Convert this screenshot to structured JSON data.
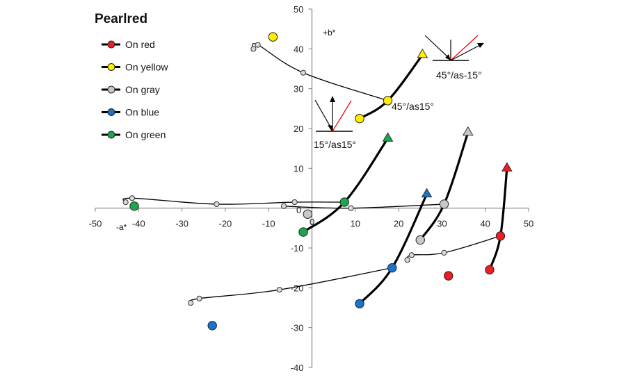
{
  "chart_data": {
    "type": "scatter",
    "title": "Pearlred",
    "xlabel": "-a*",
    "ylabel": "+b*",
    "xlim": [
      -50,
      50
    ],
    "ylim": [
      -40,
      50
    ],
    "x_ticks": [
      -50,
      -40,
      -30,
      -20,
      -10,
      0,
      10,
      20,
      30,
      40,
      50
    ],
    "y_ticks": [
      -40,
      -30,
      -20,
      -10,
      0,
      10,
      20,
      30,
      40,
      50
    ],
    "grid": false,
    "legend_position": "top-left",
    "series": [
      {
        "name": "On red",
        "color": "#ee1c24",
        "trajectory": [
          [
            41,
            -15.5
          ],
          [
            43.5,
            -7
          ],
          [
            45,
            10
          ]
        ],
        "isolated": [
          [
            31.5,
            -17
          ]
        ],
        "end_marker": "triangle"
      },
      {
        "name": "On yellow",
        "color": "#ffed00",
        "trajectory": [
          [
            11,
            22.5
          ],
          [
            17.5,
            27
          ],
          [
            25.5,
            38.5
          ]
        ],
        "isolated": [
          [
            -9,
            43
          ]
        ],
        "end_marker": "triangle"
      },
      {
        "name": "On gray",
        "color": "#c8c8c8",
        "trajectory": [
          [
            25,
            -8
          ],
          [
            30.5,
            1
          ],
          [
            36,
            19
          ]
        ],
        "isolated": [
          [
            -1,
            -1.5
          ]
        ],
        "end_marker": "triangle"
      },
      {
        "name": "On blue",
        "color": "#1874cd",
        "trajectory": [
          [
            11,
            -24
          ],
          [
            18.5,
            -15
          ],
          [
            26.5,
            3.5
          ]
        ],
        "isolated": [
          [
            -23,
            -29.5
          ]
        ],
        "end_marker": "triangle"
      },
      {
        "name": "On green",
        "color": "#18a94c",
        "trajectory": [
          [
            -2,
            -6
          ],
          [
            7.5,
            1.5
          ],
          [
            17.5,
            17.5
          ]
        ],
        "isolated": [
          [
            -41,
            0.5
          ]
        ],
        "end_marker": "triangle"
      }
    ],
    "connector_lines": [
      {
        "points": [
          [
            -13.5,
            40
          ],
          [
            -12.5,
            41
          ],
          [
            -2,
            34
          ],
          [
            17.5,
            27
          ]
        ]
      },
      {
        "points": [
          [
            -43,
            1.5
          ],
          [
            -41.5,
            2.5
          ],
          [
            -22,
            1
          ],
          [
            -4,
            1.5
          ],
          [
            7.5,
            1.5
          ]
        ]
      },
      {
        "points": [
          [
            -6.5,
            0.5
          ],
          [
            9,
            0
          ],
          [
            30.5,
            1
          ]
        ]
      },
      {
        "points": [
          [
            -28,
            -23.8
          ],
          [
            -26,
            -22.7
          ],
          [
            -7.5,
            -20.5
          ],
          [
            18.5,
            -15
          ]
        ]
      },
      {
        "points": [
          [
            22,
            -13
          ],
          [
            23,
            -11.8
          ],
          [
            30.5,
            -11.2
          ],
          [
            43.5,
            -7
          ]
        ]
      }
    ],
    "annotations": [
      {
        "text": "45°/as15°",
        "at": [
          17.5,
          27
        ]
      },
      {
        "text": "15°/as15°",
        "at": [
          0.5,
          17
        ]
      },
      {
        "text": "45°/as-15°",
        "at": [
          28,
          34
        ]
      },
      {
        "text": "0",
        "at": [
          -2.5,
          -0.2
        ]
      },
      {
        "text": "0",
        "at": [
          0,
          -3
        ]
      }
    ]
  }
}
